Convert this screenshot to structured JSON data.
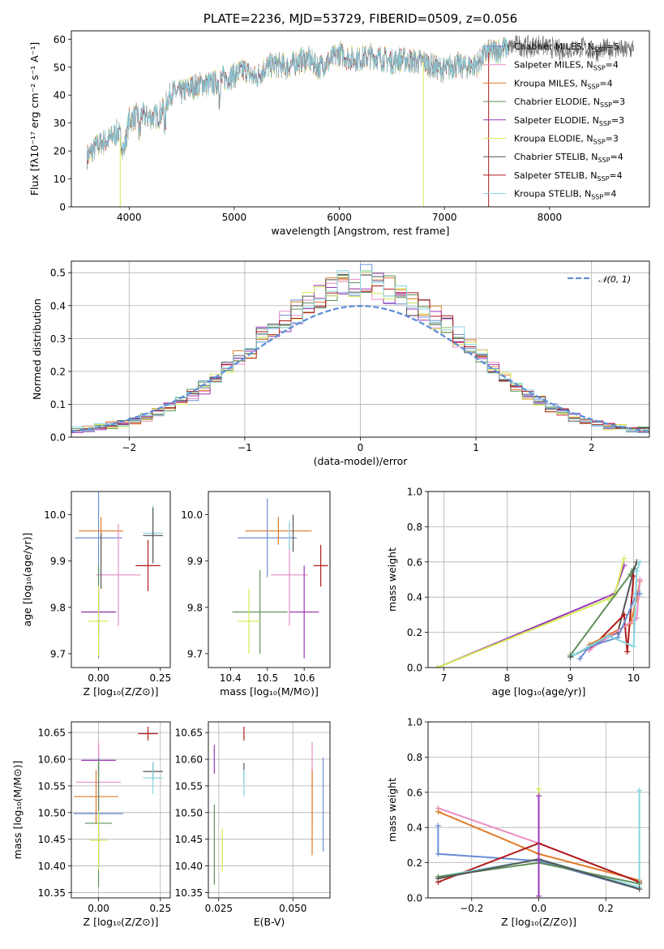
{
  "colors": {
    "chabrier_miles": "#6a8fd6",
    "salpeter_miles": "#e88ec4",
    "kroupa_miles": "#e07b28",
    "chabrier_elodie": "#5e9159",
    "salpeter_elodie": "#9b38b8",
    "kroupa_elodie": "#d4ec55",
    "chabrier_stelib": "#555555",
    "salpeter_stelib": "#b01b1b",
    "kroupa_stelib": "#86d4df",
    "gaussian": "#5f8fd6"
  },
  "chart_data": [
    {
      "id": "spectrum",
      "type": "line",
      "title": "PLATE=2236, MJD=53729, FIBERID=0509, z=0.056",
      "xlabel": "wavelength [Angstrom, rest frame]",
      "ylabel": "Flux [fλ10⁻¹⁷ erg cm⁻² s⁻¹ A⁻¹]",
      "xlim": [
        3450,
        8950
      ],
      "ylim": [
        0,
        63
      ],
      "xticks": [
        4000,
        5000,
        6000,
        7000,
        8000
      ],
      "yticks": [
        0,
        10,
        20,
        30,
        40,
        50,
        60
      ],
      "grid": false,
      "legend_position": "right",
      "x": [
        3600,
        3700,
        3800,
        3900,
        3950,
        4000,
        4100,
        4200,
        4300,
        4400,
        4500,
        4600,
        4700,
        4800,
        4900,
        5000,
        5100,
        5200,
        5300,
        5400,
        5500,
        5600,
        5700,
        5800,
        5900,
        6000,
        6100,
        6200,
        6300,
        6400,
        6500,
        6600,
        6700,
        6800,
        6900,
        7000,
        7100,
        7200,
        7300,
        7400,
        7500,
        7600,
        7700,
        7800,
        7900,
        8000,
        8100,
        8200,
        8300,
        8400,
        8500,
        8600,
        8700,
        8800
      ],
      "y": [
        18,
        22,
        24,
        27,
        20,
        31,
        33,
        32,
        33,
        41,
        41,
        43,
        44,
        44,
        46,
        47,
        49,
        46,
        50,
        51,
        50,
        52,
        53,
        50,
        52,
        55,
        53,
        53,
        54,
        53,
        52,
        53,
        52,
        52,
        50,
        49,
        51,
        50,
        51,
        55,
        56,
        57,
        58,
        57,
        58,
        57,
        56,
        57,
        57,
        56,
        56,
        57,
        56,
        57
      ],
      "series": [
        {
          "name": "Chabrier MILES, N",
          "sub": "SSP",
          "suffix": "=5"
        },
        {
          "name": "Salpeter MILES, N",
          "sub": "SSP",
          "suffix": "=4"
        },
        {
          "name": "Kroupa MILES, N",
          "sub": "SSP",
          "suffix": "=4"
        },
        {
          "name": "Chabrier ELODIE, N",
          "sub": "SSP",
          "suffix": "=3"
        },
        {
          "name": "Salpeter ELODIE, N",
          "sub": "SSP",
          "suffix": "=3"
        },
        {
          "name": "Kroupa ELODIE, N",
          "sub": "SSP",
          "suffix": "=3"
        },
        {
          "name": "Chabrier STELIB, N",
          "sub": "SSP",
          "suffix": "=4"
        },
        {
          "name": "Salpeter STELIB, N",
          "sub": "SSP",
          "suffix": "=4"
        },
        {
          "name": "Kroupa STELIB, N",
          "sub": "SSP",
          "suffix": "=4"
        }
      ]
    },
    {
      "id": "residuals",
      "type": "histogram",
      "xlabel": "(data-model)/error",
      "ylabel": "Normed distribution",
      "xlim": [
        -2.5,
        2.5
      ],
      "ylim": [
        0,
        0.535
      ],
      "xticks": [
        -2,
        -1,
        0,
        1,
        2
      ],
      "xtick_labels": [
        "−2",
        "−1",
        "0",
        "1",
        "2"
      ],
      "yticks": [
        0.0,
        0.1,
        0.2,
        0.3,
        0.4,
        0.5
      ],
      "ytick_labels": [
        "0.0",
        "0.1",
        "0.2",
        "0.3",
        "0.4",
        "0.5"
      ],
      "grid": true,
      "legend_position": "top-right",
      "gaussian_label": "𝒩(0, 1)",
      "bin_edges": [
        -2.5,
        -2.4,
        -2.3,
        -2.2,
        -2.1,
        -2.0,
        -1.9,
        -1.8,
        -1.7,
        -1.6,
        -1.5,
        -1.4,
        -1.3,
        -1.2,
        -1.1,
        -1.0,
        -0.9,
        -0.8,
        -0.7,
        -0.6,
        -0.5,
        -0.4,
        -0.3,
        -0.2,
        -0.1,
        0.0,
        0.1,
        0.2,
        0.3,
        0.4,
        0.5,
        0.6,
        0.7,
        0.8,
        0.9,
        1.0,
        1.1,
        1.2,
        1.3,
        1.4,
        1.5,
        1.6,
        1.7,
        1.8,
        1.9,
        2.0,
        2.1,
        2.2,
        2.3,
        2.4,
        2.5
      ],
      "base_values": [
        0.022,
        0.025,
        0.03,
        0.035,
        0.04,
        0.05,
        0.06,
        0.075,
        0.095,
        0.11,
        0.13,
        0.155,
        0.18,
        0.21,
        0.24,
        0.27,
        0.3,
        0.33,
        0.355,
        0.375,
        0.4,
        0.425,
        0.445,
        0.46,
        0.47,
        0.475,
        0.465,
        0.45,
        0.43,
        0.41,
        0.39,
        0.37,
        0.34,
        0.3,
        0.27,
        0.24,
        0.205,
        0.18,
        0.155,
        0.13,
        0.11,
        0.09,
        0.075,
        0.06,
        0.05,
        0.04,
        0.035,
        0.028,
        0.024,
        0.02
      ]
    },
    {
      "id": "age_vs_Z",
      "type": "errorbar",
      "xlabel": "Z [log₁₀(Z/Z⊙)]",
      "ylabel": "age  [log₁₀(age/yr)]",
      "xlim": [
        -0.11,
        0.29
      ],
      "ylim": [
        9.67,
        10.05
      ],
      "xticks": [
        0.0,
        0.25
      ],
      "xtick_labels": [
        "0.00",
        "0.25"
      ],
      "yticks": [
        9.7,
        9.8,
        9.9,
        10.0
      ],
      "ytick_labels": [
        "9.7",
        "9.8",
        "9.9",
        "10.0"
      ],
      "grid": false,
      "points": [
        {
          "s": "chabrier_miles",
          "x": 0.0,
          "y": 9.95,
          "xerr": 0.095,
          "yerr": 0.1
        },
        {
          "s": "kroupa_miles",
          "x": 0.01,
          "y": 9.965,
          "xerr": 0.09,
          "yerr": 0.03
        },
        {
          "s": "salpeter_miles",
          "x": 0.08,
          "y": 9.87,
          "xerr": 0.09,
          "yerr": 0.11
        },
        {
          "s": "kroupa_stelib",
          "x": 0.22,
          "y": 9.96,
          "xerr": 0.04,
          "yerr": 0.06
        },
        {
          "s": "chabrier_stelib",
          "x": 0.22,
          "y": 9.955,
          "xerr": 0.04,
          "yerr": 0.06
        },
        {
          "s": "salpeter_stelib",
          "x": 0.2,
          "y": 9.89,
          "xerr": 0.05,
          "yerr": 0.055
        },
        {
          "s": "chabrier_elodie",
          "x": 0.0,
          "y": 9.79,
          "xerr": 0.07,
          "yerr": 0.1
        },
        {
          "s": "salpeter_elodie",
          "x": 0.0,
          "y": 9.79,
          "xerr": 0.07,
          "yerr": 0.05
        },
        {
          "s": "kroupa_elodie",
          "x": 0.0,
          "y": 9.77,
          "xerr": 0.04,
          "yerr": 0.075
        },
        {
          "s": "chabrier_stelib",
          "x": 0.01,
          "y": 9.9,
          "xerr": 0.0,
          "yerr": 0.06
        }
      ]
    },
    {
      "id": "age_vs_mass",
      "type": "errorbar",
      "xlabel": "mass [log₁₀(M/M⊙)]",
      "ylabel": "",
      "xlim": [
        10.34,
        10.67
      ],
      "ylim": [
        9.67,
        10.05
      ],
      "xticks": [
        10.4,
        10.5,
        10.6
      ],
      "xtick_labels": [
        "10.4",
        "10.5",
        "10.6"
      ],
      "yticks": [
        9.7,
        9.8,
        9.9,
        10.0
      ],
      "ytick_labels": [
        "9.7",
        "9.8",
        "9.9",
        "10.0"
      ],
      "grid": false,
      "points": [
        {
          "s": "chabrier_miles",
          "x": 10.5,
          "y": 9.95,
          "xerr": 0.08,
          "yerr": 0.085
        },
        {
          "s": "kroupa_miles",
          "x": 10.53,
          "y": 9.965,
          "xerr": 0.09,
          "yerr": 0.03
        },
        {
          "s": "salpeter_miles",
          "x": 10.56,
          "y": 9.87,
          "xerr": 0.05,
          "yerr": 0.11
        },
        {
          "s": "chabrier_stelib",
          "x": 10.57,
          "y": 9.96,
          "xerr": 0.0,
          "yerr": 0.04
        },
        {
          "s": "salpeter_stelib",
          "x": 10.645,
          "y": 9.89,
          "xerr": 0.02,
          "yerr": 0.045
        },
        {
          "s": "chabrier_elodie",
          "x": 10.48,
          "y": 9.79,
          "xerr": 0.075,
          "yerr": 0.09
        },
        {
          "s": "salpeter_elodie",
          "x": 10.6,
          "y": 9.79,
          "xerr": 0.04,
          "yerr": 0.1
        },
        {
          "s": "kroupa_elodie",
          "x": 10.45,
          "y": 9.77,
          "xerr": 0.03,
          "yerr": 0.07
        },
        {
          "s": "kroupa_stelib",
          "x": 10.56,
          "y": 9.955,
          "xerr": 0.0,
          "yerr": 0.03
        }
      ]
    },
    {
      "id": "mass_weight_vs_age",
      "type": "line",
      "xlabel": "age  [log₁₀(age/yr)]",
      "ylabel": "mass weight",
      "xlim": [
        6.75,
        10.25
      ],
      "ylim": [
        0,
        1.0
      ],
      "xticks": [
        7,
        8,
        9,
        10
      ],
      "xtick_labels": [
        "7",
        "8",
        "9",
        "10"
      ],
      "yticks": [
        0.0,
        0.2,
        0.4,
        0.6,
        0.8,
        1.0
      ],
      "ytick_labels": [
        "0.0",
        "0.2",
        "0.4",
        "0.6",
        "0.8",
        "1.0"
      ],
      "grid": true,
      "series": [
        {
          "s": "salpeter_elodie",
          "x": [
            6.9,
            9.7,
            9.85
          ],
          "y": [
            0.0,
            0.42,
            0.58
          ]
        },
        {
          "s": "kroupa_elodie",
          "x": [
            6.9,
            9.6,
            9.7,
            9.85
          ],
          "y": [
            0.0,
            0.39,
            0.41,
            0.62
          ]
        },
        {
          "s": "chabrier_elodie",
          "x": [
            9.0,
            9.95,
            10.0
          ],
          "y": [
            0.07,
            0.53,
            0.56
          ]
        },
        {
          "s": "chabrier_stelib",
          "x": [
            9.0,
            9.75,
            10.0,
            10.05
          ],
          "y": [
            0.06,
            0.2,
            0.55,
            0.6
          ]
        },
        {
          "s": "salpeter_stelib",
          "x": [
            9.3,
            9.85,
            9.9,
            10.0
          ],
          "y": [
            0.1,
            0.3,
            0.09,
            0.52
          ]
        },
        {
          "s": "kroupa_miles",
          "x": [
            9.3,
            9.95,
            10.05,
            10.1
          ],
          "y": [
            0.13,
            0.25,
            0.39,
            0.49
          ]
        },
        {
          "s": "salpeter_miles",
          "x": [
            9.3,
            10.05,
            10.1
          ],
          "y": [
            0.1,
            0.28,
            0.5
          ]
        },
        {
          "s": "chabrier_miles",
          "x": [
            9.15,
            9.3,
            9.75,
            10.05,
            10.1
          ],
          "y": [
            0.05,
            0.12,
            0.17,
            0.42,
            0.42
          ]
        },
        {
          "s": "kroupa_stelib",
          "x": [
            9.05,
            9.6,
            10.0,
            10.05,
            10.1
          ],
          "y": [
            0.07,
            0.18,
            0.12,
            0.55,
            0.6
          ]
        }
      ]
    },
    {
      "id": "mass_vs_Z",
      "type": "errorbar",
      "xlabel": "Z [log₁₀(Z/Z⊙)]",
      "ylabel": "mass [log₁₀(M/M⊙)]",
      "xlim": [
        -0.11,
        0.29
      ],
      "ylim": [
        10.34,
        10.67
      ],
      "xticks": [
        0.0,
        0.25
      ],
      "xtick_labels": [
        "0.00",
        "0.25"
      ],
      "yticks": [
        10.35,
        10.4,
        10.45,
        10.5,
        10.55,
        10.6,
        10.65
      ],
      "ytick_labels": [
        "10.35",
        "10.40",
        "10.45",
        "10.50",
        "10.55",
        "10.60",
        "10.65"
      ],
      "grid": true,
      "points": [
        {
          "s": "salpeter_stelib",
          "x": 0.2,
          "y": 10.648,
          "xerr": 0.04,
          "yerr": 0.013
        },
        {
          "s": "salpeter_elodie",
          "x": 0.0,
          "y": 10.598,
          "xerr": 0.07,
          "yerr": 0.028
        },
        {
          "s": "chabrier_stelib",
          "x": 0.22,
          "y": 10.577,
          "xerr": 0.04,
          "yerr": 0.017
        },
        {
          "s": "kroupa_stelib",
          "x": 0.22,
          "y": 10.565,
          "xerr": 0.04,
          "yerr": 0.03
        },
        {
          "s": "salpeter_miles",
          "x": 0.0,
          "y": 10.557,
          "xerr": 0.09,
          "yerr": 0.075
        },
        {
          "s": "kroupa_miles",
          "x": -0.01,
          "y": 10.53,
          "xerr": 0.09,
          "yerr": 0.05
        },
        {
          "s": "chabrier_miles",
          "x": 0.0,
          "y": 10.498,
          "xerr": 0.1,
          "yerr": 0.105
        },
        {
          "s": "chabrier_elodie",
          "x": 0.0,
          "y": 10.48,
          "xerr": 0.055,
          "yerr": 0.12
        },
        {
          "s": "kroupa_elodie",
          "x": 0.0,
          "y": 10.448,
          "xerr": 0.035,
          "yerr": 0.055
        }
      ]
    },
    {
      "id": "mass_vs_ebv",
      "type": "errorbar",
      "xlabel": "E(B-V)",
      "ylabel": "",
      "xlim": [
        0.0215,
        0.0625
      ],
      "ylim": [
        10.34,
        10.67
      ],
      "xticks": [
        0.025,
        0.05
      ],
      "xtick_labels": [
        "0.025",
        "0.050"
      ],
      "yticks": [
        10.35,
        10.4,
        10.45,
        10.5,
        10.55,
        10.6,
        10.65
      ],
      "ytick_labels": [
        "10.35",
        "10.40",
        "10.45",
        "10.50",
        "10.55",
        "10.60",
        "10.65"
      ],
      "grid": true,
      "points": [
        {
          "s": "salpeter_stelib",
          "x": 0.0335,
          "y": 10.648,
          "xerr": 0.0,
          "yerr": 0.013
        },
        {
          "s": "salpeter_elodie",
          "x": 0.0235,
          "y": 10.6,
          "xerr": 0.0,
          "yerr": 0.027
        },
        {
          "s": "chabrier_stelib",
          "x": 0.0335,
          "y": 10.575,
          "xerr": 0.0,
          "yerr": 0.018
        },
        {
          "s": "kroupa_stelib",
          "x": 0.0335,
          "y": 10.555,
          "xerr": 0.0,
          "yerr": 0.025
        },
        {
          "s": "salpeter_miles",
          "x": 0.0565,
          "y": 10.557,
          "xerr": 0.0,
          "yerr": 0.075
        },
        {
          "s": "kroupa_miles",
          "x": 0.0565,
          "y": 10.5,
          "xerr": 0.0,
          "yerr": 0.08
        },
        {
          "s": "chabrier_miles",
          "x": 0.0602,
          "y": 10.515,
          "xerr": 0.0,
          "yerr": 0.088
        },
        {
          "s": "chabrier_elodie",
          "x": 0.0235,
          "y": 10.44,
          "xerr": 0.0,
          "yerr": 0.075
        },
        {
          "s": "kroupa_elodie",
          "x": 0.0262,
          "y": 10.43,
          "xerr": 0.0,
          "yerr": 0.04
        }
      ]
    },
    {
      "id": "mass_weight_vs_Z",
      "type": "line",
      "xlabel": "Z [log₁₀(Z/Z⊙)]",
      "ylabel": "mass weight",
      "xlim": [
        -0.33,
        0.33
      ],
      "ylim": [
        0,
        1.0
      ],
      "xticks": [
        -0.2,
        0.0,
        0.2
      ],
      "xtick_labels": [
        "−0.2",
        "0.0",
        "0.2"
      ],
      "yticks": [
        0.0,
        0.2,
        0.4,
        0.6,
        0.8,
        1.0
      ],
      "ytick_labels": [
        "0.0",
        "0.2",
        "0.4",
        "0.6",
        "0.8",
        "1.0"
      ],
      "grid": true,
      "series": [
        {
          "s": "salpeter_miles",
          "x": [
            -0.3,
            0.0,
            0.3
          ],
          "y": [
            0.51,
            0.31,
            0.09
          ]
        },
        {
          "s": "kroupa_miles",
          "x": [
            -0.3,
            0.0,
            0.3
          ],
          "y": [
            0.49,
            0.25,
            0.1
          ]
        },
        {
          "s": "chabrier_miles",
          "x": [
            -0.3,
            -0.3,
            0.0,
            0.3
          ],
          "y": [
            0.41,
            0.25,
            0.21,
            0.05
          ]
        },
        {
          "s": "salpeter_stelib",
          "x": [
            -0.3,
            0.0,
            0.3
          ],
          "y": [
            0.09,
            0.31,
            0.09
          ]
        },
        {
          "s": "kroupa_stelib",
          "x": [
            -0.3,
            0.0,
            0.3,
            0.3
          ],
          "y": [
            0.12,
            0.22,
            0.06,
            0.61
          ]
        },
        {
          "s": "chabrier_elodie",
          "x": [
            -0.3,
            0.0,
            0.3
          ],
          "y": [
            0.12,
            0.2,
            0.08
          ]
        },
        {
          "s": "chabrier_stelib",
          "x": [
            -0.3,
            0.0,
            0.3
          ],
          "y": [
            0.11,
            0.22,
            0.05
          ]
        },
        {
          "s": "kroupa_elodie",
          "x": [
            0.0,
            0.0
          ],
          "y": [
            0.0,
            0.62
          ]
        },
        {
          "s": "salpeter_elodie",
          "x": [
            0.0,
            0.0
          ],
          "y": [
            0.01,
            0.58
          ]
        }
      ]
    }
  ]
}
